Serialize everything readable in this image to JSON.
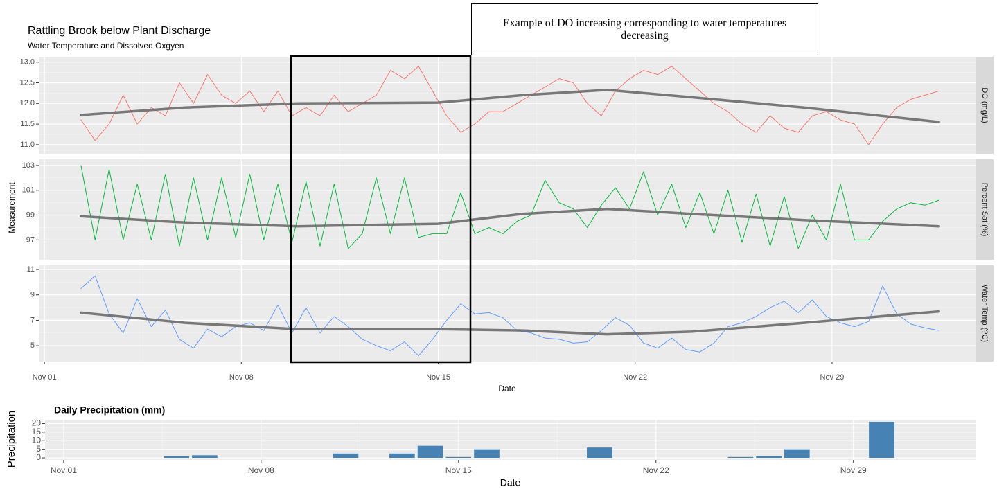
{
  "chart_data": [
    {
      "type": "line",
      "title": "Rattling Brook below Plant Discharge",
      "subtitle": "Water Temperature and Dissolved Oxgyen",
      "xlabel": "Date",
      "ylabel": "Measurement",
      "annotation": "Example of DO increasing corresponding to water temperatures decreasing",
      "xlim": [
        0.8,
        34.1
      ],
      "xticks": [
        {
          "value": 1,
          "label": "Nov 01"
        },
        {
          "value": 8,
          "label": "Nov 08"
        },
        {
          "value": 15,
          "label": "Nov 15"
        },
        {
          "value": 22,
          "label": "Nov 22"
        },
        {
          "value": 29,
          "label": "Nov 29"
        }
      ],
      "grid": true,
      "x": [
        2.3,
        2.8,
        3.3,
        3.8,
        4.3,
        4.8,
        5.3,
        5.8,
        6.3,
        6.8,
        7.3,
        7.8,
        8.3,
        8.8,
        9.3,
        9.8,
        10.3,
        10.8,
        11.3,
        11.8,
        12.3,
        12.8,
        13.3,
        13.8,
        14.3,
        14.8,
        15.3,
        15.8,
        16.3,
        16.8,
        17.3,
        17.8,
        18.3,
        18.8,
        19.3,
        19.8,
        20.3,
        20.8,
        21.3,
        21.8,
        22.3,
        22.8,
        23.3,
        23.8,
        24.3,
        24.8,
        25.3,
        25.8,
        26.3,
        26.8,
        27.3,
        27.8,
        28.3,
        28.8,
        29.3,
        29.8,
        30.3,
        30.8,
        31.3,
        31.8,
        32.3,
        32.8
      ],
      "panels": [
        {
          "strip": "DO (mg/L)",
          "ylim": [
            10.78,
            13.13
          ],
          "yticks": [
            {
              "value": 11,
              "label": "11.0"
            },
            11.5,
            {
              "value": 12,
              "label": "12.0"
            },
            12.5,
            {
              "value": 13,
              "label": "13.0"
            }
          ],
          "series": [
            {
              "color": "#f8766d",
              "values": [
                11.6,
                11.1,
                11.5,
                12.2,
                11.5,
                11.9,
                11.7,
                12.5,
                12.0,
                12.7,
                12.2,
                12.0,
                12.3,
                11.8,
                12.3,
                11.7,
                11.9,
                11.7,
                12.2,
                11.8,
                12.0,
                12.2,
                12.8,
                12.6,
                12.9,
                12.3,
                11.7,
                11.3,
                11.5,
                11.8,
                11.8,
                12.0,
                12.2,
                12.4,
                12.6,
                12.5,
                12.0,
                11.7,
                12.3,
                12.6,
                12.8,
                12.7,
                12.9,
                12.6,
                12.3,
                12.0,
                11.8,
                11.5,
                11.3,
                11.7,
                11.4,
                11.3,
                11.7,
                11.8,
                11.6,
                11.5,
                11.0,
                11.5,
                11.9,
                12.1,
                12.2,
                12.3
              ]
            },
            {
              "color": "#6b6b6b",
              "x": [
                2.3,
                6,
                10,
                15,
                18,
                21,
                24,
                28,
                32.8
              ],
              "values": [
                11.72,
                11.9,
                12.0,
                12.02,
                12.2,
                12.33,
                12.15,
                11.9,
                11.55
              ]
            }
          ]
        },
        {
          "strip": "Percent Sat (%)",
          "ylim": [
            95.4,
            103.5
          ],
          "yticks": [
            97,
            99,
            101,
            103
          ],
          "series": [
            {
              "color": "#00ba38",
              "values": [
                103,
                97,
                102.7,
                97,
                101.5,
                97,
                102.3,
                96.5,
                102,
                97,
                102,
                97.2,
                102.3,
                97,
                101.5,
                96.8,
                101.7,
                96.5,
                101.5,
                96.3,
                97.5,
                102,
                97.5,
                102,
                97.2,
                97.5,
                97.5,
                100.8,
                97.5,
                98,
                97.5,
                98.5,
                99,
                101.8,
                100,
                99.5,
                98,
                99.8,
                101.2,
                99.5,
                102.5,
                99,
                101.5,
                98,
                100.8,
                97.5,
                101,
                96.8,
                100.7,
                96.5,
                100.5,
                96.3,
                99,
                97,
                101.5,
                97,
                97,
                98.5,
                99.5,
                100,
                99.8,
                100.2
              ]
            },
            {
              "color": "#6b6b6b",
              "x": [
                2.3,
                6,
                10,
                15,
                18,
                21,
                24,
                28,
                32.8
              ],
              "values": [
                98.9,
                98.4,
                98.1,
                98.3,
                99.1,
                99.5,
                99.1,
                98.6,
                98.1
              ]
            }
          ]
        },
        {
          "strip": "Water Temp (?C)",
          "ylim": [
            3.75,
            11.33
          ],
          "yticks": [
            5,
            7,
            9,
            11
          ],
          "series": [
            {
              "color": "#619cff",
              "values": [
                9.5,
                10.5,
                7.5,
                6,
                8.7,
                6.5,
                7.8,
                5.5,
                4.8,
                6.3,
                5.7,
                6.5,
                6.8,
                6.2,
                8.2,
                6,
                8,
                6,
                7.3,
                6.5,
                5.5,
                5,
                4.6,
                5.3,
                4.2,
                5.5,
                7,
                8.3,
                7.5,
                7.6,
                7.2,
                6.2,
                6,
                5.6,
                5.5,
                5.2,
                5.3,
                6.2,
                7.2,
                6.6,
                5.2,
                4.8,
                5.6,
                4.7,
                4.5,
                5.2,
                6.5,
                6.8,
                7.3,
                8,
                8.5,
                7.6,
                8.6,
                7.3,
                6.8,
                6.5,
                6.9,
                9.7,
                7.5,
                6.7,
                6.4,
                6.2
              ]
            },
            {
              "color": "#6b6b6b",
              "x": [
                2.3,
                6,
                10,
                15,
                18,
                21,
                24,
                28,
                32.8
              ],
              "values": [
                7.6,
                6.8,
                6.3,
                6.3,
                6.2,
                5.9,
                6.1,
                6.8,
                7.7
              ]
            }
          ]
        }
      ]
    },
    {
      "type": "bar",
      "title": "Daily Precipitation (mm)",
      "xlabel": "Date",
      "ylabel": "Precipitation",
      "color": "#4682b4",
      "x": [
        5,
        6,
        11,
        13,
        14,
        15,
        16,
        20,
        25,
        26,
        27,
        30
      ],
      "values": [
        1,
        1.5,
        2.5,
        2.5,
        7,
        0.5,
        5,
        6,
        0.5,
        1,
        5,
        21
      ],
      "xlim": [
        0.34,
        33.33
      ],
      "xticks": [
        {
          "value": 1,
          "label": "Nov 01"
        },
        {
          "value": 8,
          "label": "Nov 08"
        },
        {
          "value": 15,
          "label": "Nov 15"
        },
        {
          "value": 22,
          "label": "Nov 22"
        },
        {
          "value": 29,
          "label": "Nov 29"
        }
      ],
      "ylim": [
        -1.2,
        22.2
      ],
      "yticks": [
        0,
        5,
        10,
        15,
        20
      ],
      "grid": true
    }
  ]
}
